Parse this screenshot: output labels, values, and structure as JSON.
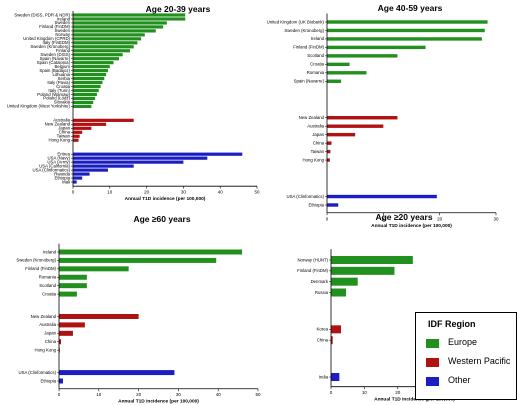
{
  "colors": {
    "europe": "#22901f",
    "western_pacific": "#b01212",
    "other": "#1b1fc2"
  },
  "legend": {
    "title": "IDF Region",
    "items": [
      {
        "label": "Europe",
        "color": "#22901f"
      },
      {
        "label": "Western  Pacific",
        "color": "#b01212"
      },
      {
        "label": "Other",
        "color": "#1b1fc2"
      }
    ]
  },
  "chart_data": [
    {
      "type": "bar",
      "orientation": "horizontal",
      "title": "Age 20-39 years",
      "xlabel": "Annual T1D incidence  (per 100,000)",
      "xlim": [
        0,
        50
      ],
      "xticks": [
        0,
        10,
        20,
        30,
        40,
        50
      ],
      "groups": [
        {
          "region": "Europe",
          "color": "#22901f",
          "categories": [
            {
              "label": "Sweden (DISS, PDR & NDR)",
              "value": 30.5
            },
            {
              "label": "Ireland",
              "value": 30.5
            },
            {
              "label": "Sweden",
              "value": 25.5
            },
            {
              "label": "Finland (FinDM)",
              "value": 24.5
            },
            {
              "label": "Sweden",
              "value": 22.5
            },
            {
              "label": "Norway",
              "value": 19.5
            },
            {
              "label": "United Kingdom (CPRD)",
              "value": 18.5
            },
            {
              "label": "Italy (FinEDM)",
              "value": 17.5
            },
            {
              "label": "Sweden (Kronoberg)",
              "value": 16.5
            },
            {
              "label": "Finland",
              "value": 15.5
            },
            {
              "label": "Sweden (DISS)",
              "value": 13.5
            },
            {
              "label": "Spain (Navarre)",
              "value": 12.5
            },
            {
              "label": "Spain (Catalonia)",
              "value": 11
            },
            {
              "label": "Belgium",
              "value": 10
            },
            {
              "label": "Spain (Badajoz)",
              "value": 9.5
            },
            {
              "label": "Lithuania",
              "value": 9
            },
            {
              "label": "Serbia",
              "value": 8.5
            },
            {
              "label": "Italy (Pavia)",
              "value": 8
            },
            {
              "label": "Croatia",
              "value": 7.5
            },
            {
              "label": "Italy (Turin)",
              "value": 7
            },
            {
              "label": "Poland (Warsaw)",
              "value": 6.5
            },
            {
              "label": "Poland (Łódź)",
              "value": 6
            },
            {
              "label": "Slovakia",
              "value": 5.5
            },
            {
              "label": "United Kingdom (West Yorkshire)",
              "value": 5
            }
          ]
        },
        {
          "region": "Western Pacific",
          "color": "#b01212",
          "categories": [
            {
              "label": "Australia",
              "value": 16.5
            },
            {
              "label": "New Zealand",
              "value": 9
            },
            {
              "label": "Japan",
              "value": 5
            },
            {
              "label": "China",
              "value": 2.5
            },
            {
              "label": "Taiwan",
              "value": 1.8
            },
            {
              "label": "Hong Kong",
              "value": 1.5
            }
          ]
        },
        {
          "region": "Other",
          "color": "#1b1fc2",
          "categories": [
            {
              "label": "Eritrea",
              "value": 46
            },
            {
              "label": "USA (Navy)",
              "value": 36.5
            },
            {
              "label": "USA (Army)",
              "value": 30
            },
            {
              "label": "USA (California)",
              "value": 16.5
            },
            {
              "label": "USA (Clinformatics)",
              "value": 9.5
            },
            {
              "label": "Rwanda",
              "value": 4.5
            },
            {
              "label": "Ethiopia",
              "value": 2.5
            },
            {
              "label": "Mali",
              "value": 1
            }
          ]
        }
      ]
    },
    {
      "type": "bar",
      "orientation": "horizontal",
      "title": "Age 40-59 years",
      "xlabel": "Annual T1D incidence  (per 100,000)",
      "xlim": [
        0,
        30
      ],
      "xticks": [
        0,
        10,
        20,
        30
      ],
      "groups": [
        {
          "region": "Europe",
          "color": "#22901f",
          "categories": [
            {
              "label": "United Kingdom (UK Biobank)",
              "value": 28.5
            },
            {
              "label": "Sweden (Kronoberg)",
              "value": 28
            },
            {
              "label": "Ireland",
              "value": 27.5
            },
            {
              "label": "Finland (FinDM)",
              "value": 17.5
            },
            {
              "label": "Scotland",
              "value": 12.5
            },
            {
              "label": "Croatia",
              "value": 4
            },
            {
              "label": "Romania",
              "value": 7
            },
            {
              "label": "Spain (Navarre)",
              "value": 2.5
            }
          ]
        },
        {
          "region": "Western Pacific",
          "color": "#b01212",
          "categories": [
            {
              "label": "New Zealand",
              "value": 12.5
            },
            {
              "label": "Australia",
              "value": 10
            },
            {
              "label": "Japan",
              "value": 5
            },
            {
              "label": "China",
              "value": 0.8
            },
            {
              "label": "Taiwan",
              "value": 0.6
            },
            {
              "label": "Hong Kong",
              "value": 0.5
            }
          ]
        },
        {
          "region": "Other",
          "color": "#1b1fc2",
          "categories": [
            {
              "label": "USA (Clinformatics)",
              "value": 19.5
            },
            {
              "label": "Ethiopia",
              "value": 2
            }
          ]
        }
      ]
    },
    {
      "type": "bar",
      "orientation": "horizontal",
      "title": "Age ≥60 years",
      "xlabel": "Annual T1D incidence  (per 100,000)",
      "xlim": [
        0,
        50
      ],
      "xticks": [
        0,
        10,
        20,
        30,
        40,
        50
      ],
      "groups": [
        {
          "region": "Europe",
          "color": "#22901f",
          "categories": [
            {
              "label": "Ireland",
              "value": 46
            },
            {
              "label": "Sweden (Kronoberg)",
              "value": 39.5
            },
            {
              "label": "Finland (FinDM)",
              "value": 17.5
            },
            {
              "label": "Romania",
              "value": 7
            },
            {
              "label": "Scotland",
              "value": 7
            },
            {
              "label": "Croatia",
              "value": 4.5
            }
          ]
        },
        {
          "region": "Western Pacific",
          "color": "#b01212",
          "categories": [
            {
              "label": "New Zealand",
              "value": 20
            },
            {
              "label": "Australia",
              "value": 6.5
            },
            {
              "label": "Japan",
              "value": 3.5
            },
            {
              "label": "China",
              "value": 0.5
            },
            {
              "label": "Hong Kong",
              "value": 0.2
            }
          ]
        },
        {
          "region": "Other",
          "color": "#1b1fc2",
          "categories": [
            {
              "label": "USA (Clinformatics)",
              "value": 29
            },
            {
              "label": "Ethiopia",
              "value": 1
            }
          ]
        }
      ]
    },
    {
      "type": "bar",
      "orientation": "horizontal",
      "title": "Age ≥20 years",
      "xlabel": "Annual T1D incidence  (per 100,000)",
      "xlim": [
        0,
        50
      ],
      "xticks": [
        0,
        10,
        20,
        30,
        40,
        50
      ],
      "groups": [
        {
          "region": "Europe",
          "color": "#22901f",
          "categories": [
            {
              "label": "Norway (HUNT)",
              "value": 24.5
            },
            {
              "label": "Finland (FinDM)",
              "value": 19
            },
            {
              "label": "Denmark",
              "value": 8
            },
            {
              "label": "Russia",
              "value": 4.5
            }
          ]
        },
        {
          "region": "Western Pacific",
          "color": "#b01212",
          "categories": [
            {
              "label": "Korea",
              "value": 3
            },
            {
              "label": "China",
              "value": 0.5
            }
          ]
        },
        {
          "region": "Other",
          "color": "#1b1fc2",
          "categories": [
            {
              "label": "India",
              "value": 2.5
            }
          ]
        }
      ]
    }
  ]
}
